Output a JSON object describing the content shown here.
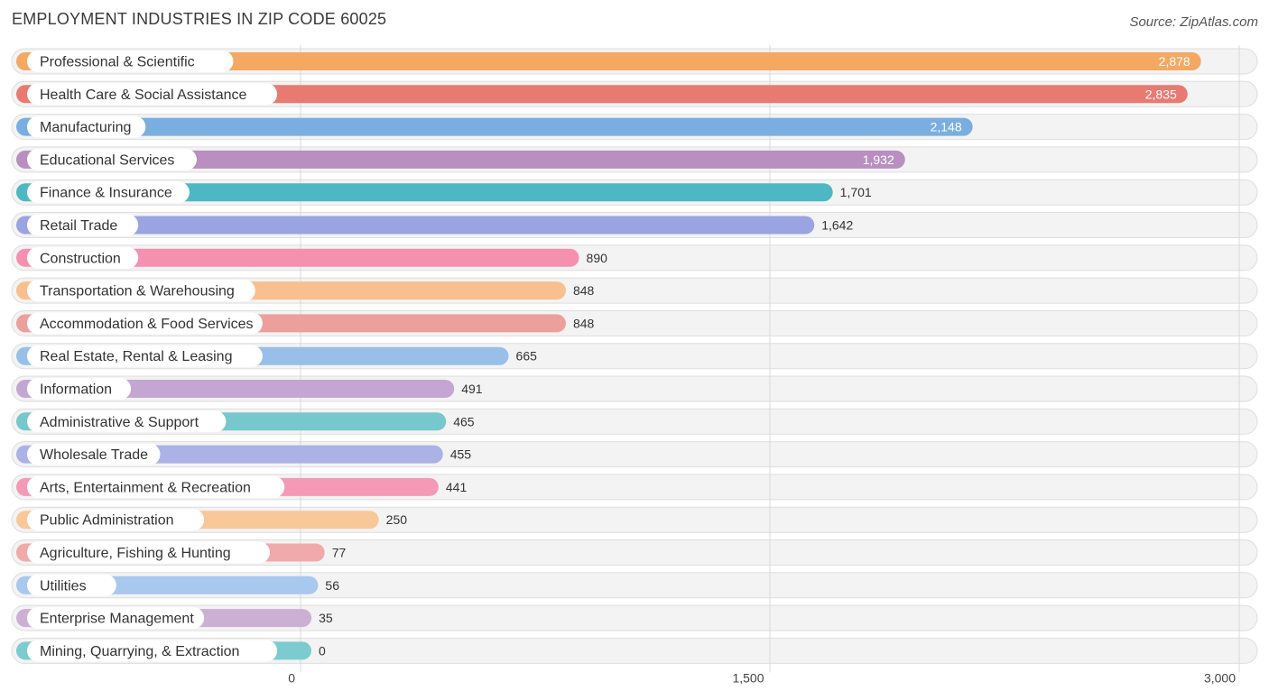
{
  "header": {
    "title": "EMPLOYMENT INDUSTRIES IN ZIP CODE 60025",
    "source": "Source: ZipAtlas.com"
  },
  "chart_data": {
    "type": "bar",
    "orientation": "horizontal",
    "title": "EMPLOYMENT INDUSTRIES IN ZIP CODE 60025",
    "xlabel": "",
    "ylabel": "",
    "xlim": [
      0,
      3000
    ],
    "grid": true,
    "x_ticks": [
      0,
      1500,
      3000
    ],
    "x_tick_labels": [
      "0",
      "1,500",
      "3,000"
    ],
    "categories": [
      "Professional & Scientific",
      "Health Care & Social Assistance",
      "Manufacturing",
      "Educational Services",
      "Finance & Insurance",
      "Retail Trade",
      "Construction",
      "Transportation & Warehousing",
      "Accommodation & Food Services",
      "Real Estate, Rental & Leasing",
      "Information",
      "Administrative & Support",
      "Wholesale Trade",
      "Arts, Entertainment & Recreation",
      "Public Administration",
      "Agriculture, Fishing & Hunting",
      "Utilities",
      "Enterprise Management",
      "Mining, Quarrying, & Extraction"
    ],
    "values": [
      2878,
      2835,
      2148,
      1932,
      1701,
      1642,
      890,
      848,
      848,
      665,
      491,
      465,
      455,
      441,
      250,
      77,
      56,
      35,
      0
    ],
    "value_labels": [
      "2,878",
      "2,835",
      "2,148",
      "1,932",
      "1,701",
      "1,642",
      "890",
      "848",
      "848",
      "665",
      "491",
      "465",
      "455",
      "441",
      "250",
      "77",
      "56",
      "35",
      "0"
    ],
    "colors": [
      "#f5a862",
      "#e87a72",
      "#7aaee0",
      "#b88fc0",
      "#4db8c4",
      "#9aa4e2",
      "#f590b0",
      "#f8c08e",
      "#eca09c",
      "#98bfe8",
      "#c4a6d2",
      "#76c8cc",
      "#aab2e6",
      "#f59ab6",
      "#f8c898",
      "#f0aaaa",
      "#a8c8ee",
      "#ccb0d4",
      "#7ccccf"
    ]
  }
}
